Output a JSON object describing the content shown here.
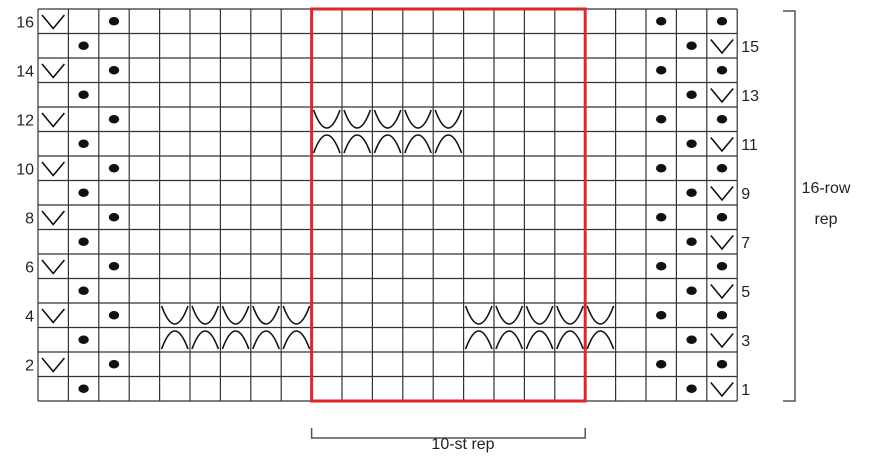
{
  "chart": {
    "row_count": 16,
    "stitch_count": 23,
    "left_row_labels": [
      "16",
      "14",
      "12",
      "10",
      "8",
      "6",
      "4",
      "2"
    ],
    "right_row_labels": [
      "15",
      "13",
      "11",
      "9",
      "7",
      "5",
      "3",
      "1"
    ],
    "row_rep_label_line1": "16-row",
    "row_rep_label_line2": "rep",
    "stitch_rep_label": "10-st rep",
    "rep_start_col": 9,
    "rep_end_col": 18,
    "colors": {
      "grid": "#333333",
      "repeat_box": "#e0262b",
      "symbol": "#111111",
      "bracket": "#555555"
    },
    "symbols": {
      "slip": "check-v-icon",
      "purl": "dot-icon",
      "cable_top": "cup-arc-icon",
      "cable_bottom": "cap-arc-icon"
    },
    "cells": [
      {
        "row": 16,
        "col": 1,
        "symbol": "slip"
      },
      {
        "row": 16,
        "col": 3,
        "symbol": "purl"
      },
      {
        "row": 16,
        "col": 21,
        "symbol": "purl"
      },
      {
        "row": 16,
        "col": 23,
        "symbol": "purl"
      },
      {
        "row": 15,
        "col": 2,
        "symbol": "purl"
      },
      {
        "row": 15,
        "col": 22,
        "symbol": "purl"
      },
      {
        "row": 15,
        "col": 23,
        "symbol": "slip"
      },
      {
        "row": 14,
        "col": 1,
        "symbol": "slip"
      },
      {
        "row": 14,
        "col": 3,
        "symbol": "purl"
      },
      {
        "row": 14,
        "col": 21,
        "symbol": "purl"
      },
      {
        "row": 14,
        "col": 23,
        "symbol": "purl"
      },
      {
        "row": 13,
        "col": 2,
        "symbol": "purl"
      },
      {
        "row": 13,
        "col": 22,
        "symbol": "purl"
      },
      {
        "row": 13,
        "col": 23,
        "symbol": "slip"
      },
      {
        "row": 12,
        "col": 1,
        "symbol": "slip"
      },
      {
        "row": 12,
        "col": 3,
        "symbol": "purl"
      },
      {
        "row": 12,
        "col": 10,
        "symbol": "cable_top"
      },
      {
        "row": 12,
        "col": 11,
        "symbol": "cable_top"
      },
      {
        "row": 12,
        "col": 12,
        "symbol": "cable_top"
      },
      {
        "row": 12,
        "col": 13,
        "symbol": "cable_top"
      },
      {
        "row": 12,
        "col": 14,
        "symbol": "cable_top"
      },
      {
        "row": 12,
        "col": 21,
        "symbol": "purl"
      },
      {
        "row": 12,
        "col": 23,
        "symbol": "purl"
      },
      {
        "row": 11,
        "col": 2,
        "symbol": "purl"
      },
      {
        "row": 11,
        "col": 10,
        "symbol": "cable_bottom"
      },
      {
        "row": 11,
        "col": 11,
        "symbol": "cable_bottom"
      },
      {
        "row": 11,
        "col": 12,
        "symbol": "cable_bottom"
      },
      {
        "row": 11,
        "col": 13,
        "symbol": "cable_bottom"
      },
      {
        "row": 11,
        "col": 14,
        "symbol": "cable_bottom"
      },
      {
        "row": 11,
        "col": 22,
        "symbol": "purl"
      },
      {
        "row": 11,
        "col": 23,
        "symbol": "slip"
      },
      {
        "row": 10,
        "col": 1,
        "symbol": "slip"
      },
      {
        "row": 10,
        "col": 3,
        "symbol": "purl"
      },
      {
        "row": 10,
        "col": 21,
        "symbol": "purl"
      },
      {
        "row": 10,
        "col": 23,
        "symbol": "purl"
      },
      {
        "row": 9,
        "col": 2,
        "symbol": "purl"
      },
      {
        "row": 9,
        "col": 22,
        "symbol": "purl"
      },
      {
        "row": 9,
        "col": 23,
        "symbol": "slip"
      },
      {
        "row": 8,
        "col": 1,
        "symbol": "slip"
      },
      {
        "row": 8,
        "col": 3,
        "symbol": "purl"
      },
      {
        "row": 8,
        "col": 21,
        "symbol": "purl"
      },
      {
        "row": 8,
        "col": 23,
        "symbol": "purl"
      },
      {
        "row": 7,
        "col": 2,
        "symbol": "purl"
      },
      {
        "row": 7,
        "col": 22,
        "symbol": "purl"
      },
      {
        "row": 7,
        "col": 23,
        "symbol": "slip"
      },
      {
        "row": 6,
        "col": 1,
        "symbol": "slip"
      },
      {
        "row": 6,
        "col": 3,
        "symbol": "purl"
      },
      {
        "row": 6,
        "col": 21,
        "symbol": "purl"
      },
      {
        "row": 6,
        "col": 23,
        "symbol": "purl"
      },
      {
        "row": 5,
        "col": 2,
        "symbol": "purl"
      },
      {
        "row": 5,
        "col": 22,
        "symbol": "purl"
      },
      {
        "row": 5,
        "col": 23,
        "symbol": "slip"
      },
      {
        "row": 4,
        "col": 1,
        "symbol": "slip"
      },
      {
        "row": 4,
        "col": 3,
        "symbol": "purl"
      },
      {
        "row": 4,
        "col": 5,
        "symbol": "cable_top"
      },
      {
        "row": 4,
        "col": 6,
        "symbol": "cable_top"
      },
      {
        "row": 4,
        "col": 7,
        "symbol": "cable_top"
      },
      {
        "row": 4,
        "col": 8,
        "symbol": "cable_top"
      },
      {
        "row": 4,
        "col": 9,
        "symbol": "cable_top"
      },
      {
        "row": 4,
        "col": 15,
        "symbol": "cable_top"
      },
      {
        "row": 4,
        "col": 16,
        "symbol": "cable_top"
      },
      {
        "row": 4,
        "col": 17,
        "symbol": "cable_top"
      },
      {
        "row": 4,
        "col": 18,
        "symbol": "cable_top"
      },
      {
        "row": 4,
        "col": 19,
        "symbol": "cable_top"
      },
      {
        "row": 4,
        "col": 21,
        "symbol": "purl"
      },
      {
        "row": 4,
        "col": 23,
        "symbol": "purl"
      },
      {
        "row": 3,
        "col": 2,
        "symbol": "purl"
      },
      {
        "row": 3,
        "col": 5,
        "symbol": "cable_bottom"
      },
      {
        "row": 3,
        "col": 6,
        "symbol": "cable_bottom"
      },
      {
        "row": 3,
        "col": 7,
        "symbol": "cable_bottom"
      },
      {
        "row": 3,
        "col": 8,
        "symbol": "cable_bottom"
      },
      {
        "row": 3,
        "col": 9,
        "symbol": "cable_bottom"
      },
      {
        "row": 3,
        "col": 15,
        "symbol": "cable_bottom"
      },
      {
        "row": 3,
        "col": 16,
        "symbol": "cable_bottom"
      },
      {
        "row": 3,
        "col": 17,
        "symbol": "cable_bottom"
      },
      {
        "row": 3,
        "col": 18,
        "symbol": "cable_bottom"
      },
      {
        "row": 3,
        "col": 19,
        "symbol": "cable_bottom"
      },
      {
        "row": 3,
        "col": 22,
        "symbol": "purl"
      },
      {
        "row": 3,
        "col": 23,
        "symbol": "slip"
      },
      {
        "row": 2,
        "col": 1,
        "symbol": "slip"
      },
      {
        "row": 2,
        "col": 3,
        "symbol": "purl"
      },
      {
        "row": 2,
        "col": 21,
        "symbol": "purl"
      },
      {
        "row": 2,
        "col": 23,
        "symbol": "purl"
      },
      {
        "row": 1,
        "col": 2,
        "symbol": "purl"
      },
      {
        "row": 1,
        "col": 22,
        "symbol": "purl"
      },
      {
        "row": 1,
        "col": 23,
        "symbol": "slip"
      }
    ]
  }
}
